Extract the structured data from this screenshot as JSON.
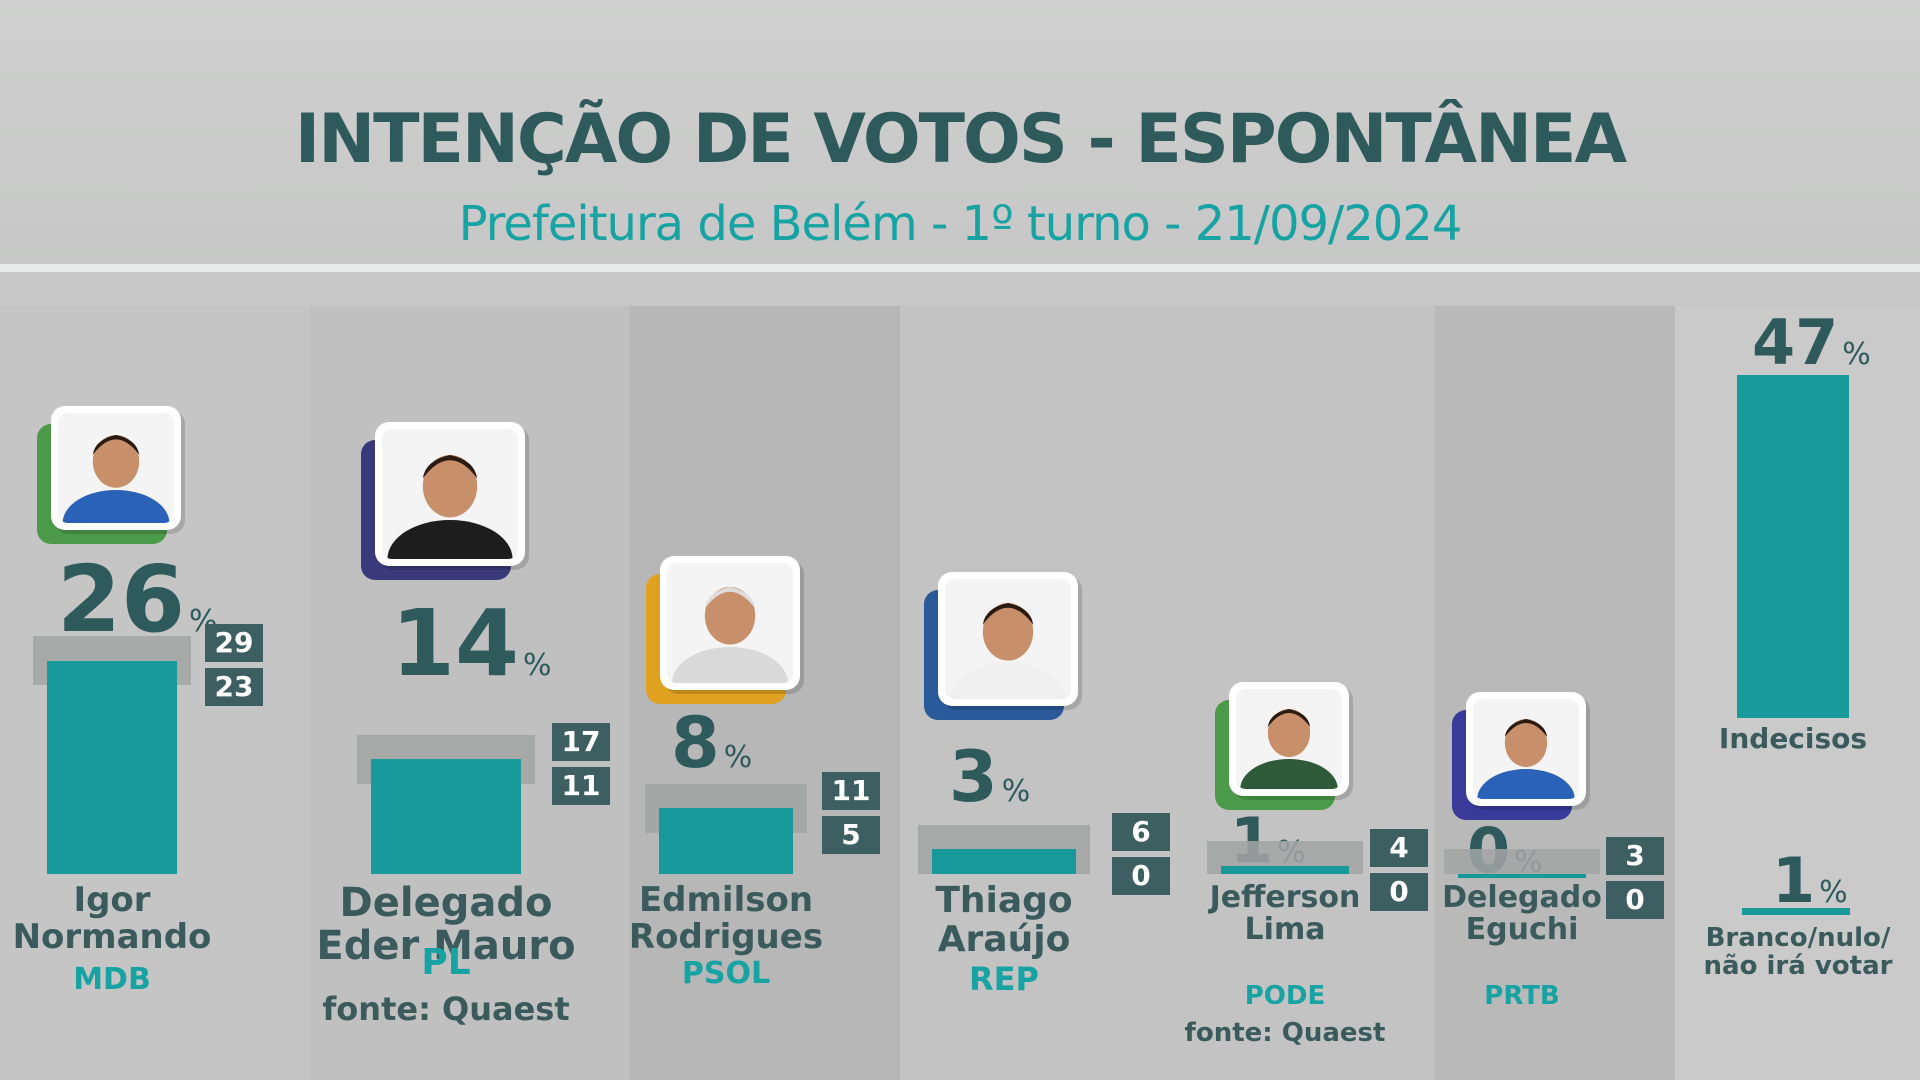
{
  "header": {
    "title": "INTENÇÃO DE VOTOS - ESPONTÂNEA",
    "subtitle": "Prefeitura de Belém - 1º turno - 21/09/2024"
  },
  "chart_data": {
    "type": "bar",
    "unit": "%",
    "categories": [
      "Igor Normando",
      "Delegado Eder Mauro",
      "Edmilson Rodrigues",
      "Thiago Araújo",
      "Jefferson Lima",
      "Delegado Eguchi"
    ],
    "candidates": [
      {
        "name_line1": "Igor",
        "name_line2": "Normando",
        "party": "MDB",
        "value": 26,
        "range_high": 29,
        "range_low": 23,
        "color": "#4a9a4a"
      },
      {
        "name_line1": "Delegado",
        "name_line2": "Eder Mauro",
        "party": "PL",
        "value": 14,
        "range_high": 17,
        "range_low": 11,
        "color": "#3a3a7a",
        "source": "fonte: Quaest"
      },
      {
        "name_line1": "Edmilson",
        "name_line2": "Rodrigues",
        "party": "PSOL",
        "value": 8,
        "range_high": 11,
        "range_low": 5,
        "color": "#e0a020"
      },
      {
        "name_line1": "Thiago",
        "name_line2": "Araújo",
        "party": "REP",
        "value": 3,
        "range_high": 6,
        "range_low": 0,
        "color": "#2a5a9a"
      },
      {
        "name_line1": "Jefferson",
        "name_line2": "Lima",
        "party": "PODE",
        "value": 1,
        "range_high": 4,
        "range_low": 0,
        "color": "#4a9a4a",
        "source": "fonte: Quaest"
      },
      {
        "name_line1": "Delegado",
        "name_line2": "Eguchi",
        "party": "PRTB",
        "value": 0,
        "range_high": 3,
        "range_low": 0,
        "color": "#3a3a9a"
      }
    ],
    "extra": [
      {
        "label": "Indecisos",
        "value": 47
      },
      {
        "label_line1": "Branco/nulo/",
        "label_line2": "não irá votar",
        "value": 1
      }
    ],
    "percent_sign": "%"
  }
}
